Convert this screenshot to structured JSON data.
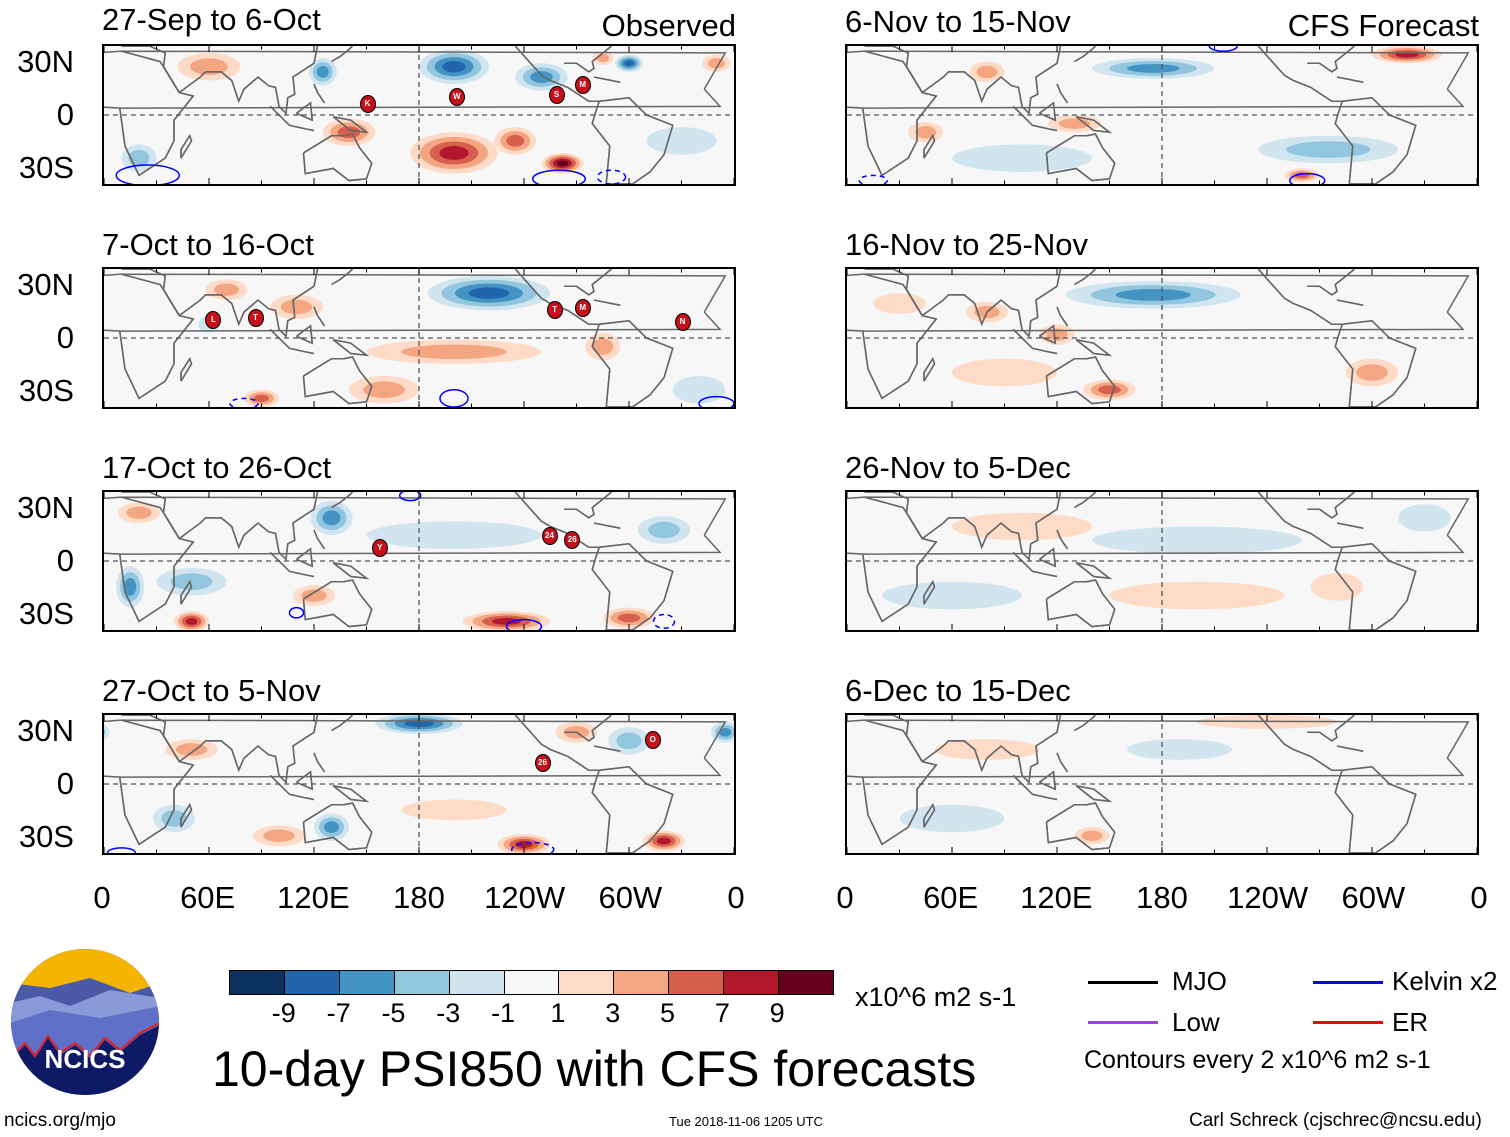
{
  "panels": [
    {
      "title": "27-Sep to 6-Oct",
      "tag": "Observed",
      "blobs": [
        [
          60,
          28,
          18,
          8,
          2
        ],
        [
          140,
          -10,
          15,
          8,
          3
        ],
        [
          200,
          -22,
          25,
          12,
          4
        ],
        [
          262,
          -28,
          12,
          6,
          5
        ],
        [
          235,
          -15,
          12,
          8,
          3
        ],
        [
          200,
          28,
          20,
          10,
          -4
        ],
        [
          125,
          25,
          8,
          8,
          -3
        ],
        [
          250,
          22,
          15,
          8,
          -3
        ],
        [
          300,
          30,
          8,
          5,
          -4
        ],
        [
          285,
          33,
          6,
          4,
          2
        ],
        [
          350,
          30,
          8,
          5,
          2
        ],
        [
          20,
          -25,
          10,
          8,
          -2
        ],
        [
          330,
          -15,
          20,
          8,
          -1
        ]
      ],
      "storms": [
        [
          150,
          7,
          "K"
        ],
        [
          201,
          11,
          "W"
        ],
        [
          258,
          12,
          "S"
        ],
        [
          273,
          18,
          "M"
        ]
      ],
      "contours": [
        [
          25,
          -35,
          18,
          6,
          false
        ],
        [
          260,
          -37,
          15,
          5,
          false
        ],
        [
          290,
          -36,
          8,
          4,
          true
        ]
      ]
    },
    {
      "title": "7-Oct to 16-Oct",
      "tag": "",
      "blobs": [
        [
          220,
          26,
          35,
          10,
          -4
        ],
        [
          110,
          18,
          15,
          7,
          2
        ],
        [
          200,
          -8,
          50,
          7,
          2
        ],
        [
          70,
          28,
          12,
          6,
          2
        ],
        [
          90,
          -35,
          10,
          5,
          3
        ],
        [
          285,
          -5,
          10,
          8,
          2
        ],
        [
          60,
          8,
          6,
          5,
          -1
        ],
        [
          160,
          -30,
          20,
          8,
          2
        ],
        [
          340,
          -30,
          15,
          8,
          -1
        ]
      ],
      "storms": [
        [
          62,
          11,
          "L"
        ],
        [
          86,
          12,
          "T"
        ],
        [
          257,
          17,
          "T"
        ],
        [
          273,
          18,
          "M"
        ],
        [
          330,
          10,
          "N"
        ]
      ],
      "contours": [
        [
          200,
          -35,
          8,
          5,
          false
        ],
        [
          350,
          -38,
          10,
          4,
          false
        ],
        [
          80,
          -38,
          8,
          3,
          true
        ]
      ]
    },
    {
      "title": "17-Oct to 26-Oct",
      "tag": "",
      "blobs": [
        [
          130,
          25,
          12,
          10,
          -3
        ],
        [
          320,
          18,
          15,
          8,
          -2
        ],
        [
          50,
          -12,
          20,
          8,
          -2
        ],
        [
          200,
          15,
          50,
          8,
          -1
        ],
        [
          50,
          -35,
          10,
          6,
          4
        ],
        [
          230,
          -35,
          25,
          6,
          4
        ],
        [
          300,
          -33,
          15,
          6,
          3
        ],
        [
          120,
          -20,
          12,
          6,
          2
        ],
        [
          20,
          28,
          12,
          6,
          2
        ],
        [
          15,
          -15,
          8,
          12,
          -3
        ]
      ],
      "storms": [
        [
          157,
          8,
          "Y"
        ],
        [
          254,
          15,
          "24"
        ],
        [
          267,
          13,
          "26"
        ]
      ],
      "contours": [
        [
          175,
          38,
          6,
          3,
          false
        ],
        [
          110,
          -30,
          4,
          3,
          false
        ],
        [
          240,
          -38,
          10,
          4,
          false
        ],
        [
          320,
          -35,
          6,
          4,
          true
        ]
      ]
    },
    {
      "title": "27-Oct to 5-Nov",
      "tag": "",
      "blobs": [
        [
          180,
          35,
          25,
          6,
          -4
        ],
        [
          300,
          25,
          12,
          8,
          -2
        ],
        [
          130,
          -25,
          10,
          8,
          -3
        ],
        [
          40,
          -20,
          12,
          8,
          -2
        ],
        [
          355,
          30,
          8,
          6,
          -3
        ],
        [
          240,
          -35,
          15,
          6,
          4
        ],
        [
          320,
          -33,
          12,
          6,
          4
        ],
        [
          100,
          -30,
          15,
          6,
          2
        ],
        [
          50,
          20,
          15,
          6,
          2
        ],
        [
          270,
          30,
          12,
          6,
          2
        ],
        [
          200,
          -15,
          30,
          6,
          1
        ]
      ],
      "storms": [
        [
          250,
          13,
          "26"
        ],
        [
          313,
          26,
          "O"
        ]
      ],
      "contours": [
        [
          245,
          -38,
          12,
          4,
          true
        ],
        [
          10,
          -40,
          8,
          3,
          false
        ]
      ]
    },
    {
      "title": "6-Nov to 15-Nov",
      "tag": "CFS Forecast",
      "blobs": [
        [
          175,
          27,
          35,
          6,
          -3
        ],
        [
          275,
          -20,
          40,
          8,
          -2
        ],
        [
          100,
          -25,
          40,
          8,
          -1
        ],
        [
          320,
          35,
          20,
          5,
          4
        ],
        [
          260,
          -35,
          10,
          4,
          3
        ],
        [
          45,
          -10,
          10,
          6,
          2
        ],
        [
          80,
          25,
          10,
          6,
          2
        ],
        [
          130,
          -5,
          15,
          5,
          2
        ]
      ],
      "storms": [],
      "contours": [
        [
          215,
          40,
          8,
          3,
          false
        ],
        [
          263,
          -38,
          10,
          4,
          false
        ],
        [
          15,
          -38,
          8,
          3,
          true
        ]
      ]
    },
    {
      "title": "16-Nov to 25-Nov",
      "tag": "",
      "blobs": [
        [
          175,
          25,
          50,
          8,
          -3
        ],
        [
          80,
          15,
          12,
          6,
          2
        ],
        [
          120,
          2,
          10,
          6,
          2
        ],
        [
          150,
          -30,
          15,
          6,
          3
        ],
        [
          90,
          -20,
          30,
          8,
          1
        ],
        [
          300,
          -20,
          15,
          8,
          2
        ],
        [
          30,
          20,
          15,
          6,
          1
        ]
      ],
      "storms": [],
      "contours": []
    },
    {
      "title": "26-Nov to 5-Dec",
      "tag": "",
      "blobs": [
        [
          200,
          12,
          60,
          8,
          -1
        ],
        [
          60,
          -20,
          40,
          8,
          -1
        ],
        [
          330,
          25,
          15,
          8,
          -1
        ],
        [
          100,
          20,
          40,
          8,
          1
        ],
        [
          200,
          -20,
          50,
          8,
          1
        ],
        [
          280,
          -15,
          15,
          8,
          1
        ]
      ],
      "storms": [],
      "contours": []
    },
    {
      "title": "6-Dec to 15-Dec",
      "tag": "",
      "blobs": [
        [
          190,
          20,
          30,
          6,
          -1
        ],
        [
          60,
          -20,
          30,
          8,
          -1
        ],
        [
          140,
          -30,
          10,
          5,
          2
        ],
        [
          80,
          20,
          30,
          6,
          1
        ],
        [
          240,
          36,
          40,
          4,
          1
        ]
      ],
      "storms": [],
      "contours": []
    }
  ],
  "lat_labels": [
    "30N",
    "0",
    "30S"
  ],
  "lon_labels": [
    "0",
    "60E",
    "120E",
    "180",
    "120W",
    "60W",
    "0"
  ],
  "colorbar": {
    "colors": [
      "#0a3060",
      "#2166ac",
      "#4393c3",
      "#92c5de",
      "#d1e5f0",
      "#f7f7f7",
      "#fddbc7",
      "#f4a582",
      "#d6604d",
      "#b2182b",
      "#67001f"
    ],
    "labels": [
      "-9",
      "-7",
      "-5",
      "-3",
      "-1",
      "1",
      "3",
      "5",
      "7",
      "9"
    ],
    "units": "x10^6 m2 s-1"
  },
  "title": "10-day PSI850 with CFS forecasts",
  "legend": {
    "items": [
      {
        "label": "MJO",
        "color": "#000000"
      },
      {
        "label": "Kelvin x2",
        "color": "#0000ff"
      },
      {
        "label": "Low",
        "color": "#a040e0"
      },
      {
        "label": "ER",
        "color": "#ff0000"
      }
    ],
    "contours": "Contours every 2 x10^6 m2 s-1"
  },
  "logo_text": "NCICS",
  "footer": {
    "left": "ncics.org/mjo",
    "center": "Tue 2018-11-06 1205 UTC",
    "right": "Carl Schreck (cjschrec@ncsu.edu)"
  }
}
